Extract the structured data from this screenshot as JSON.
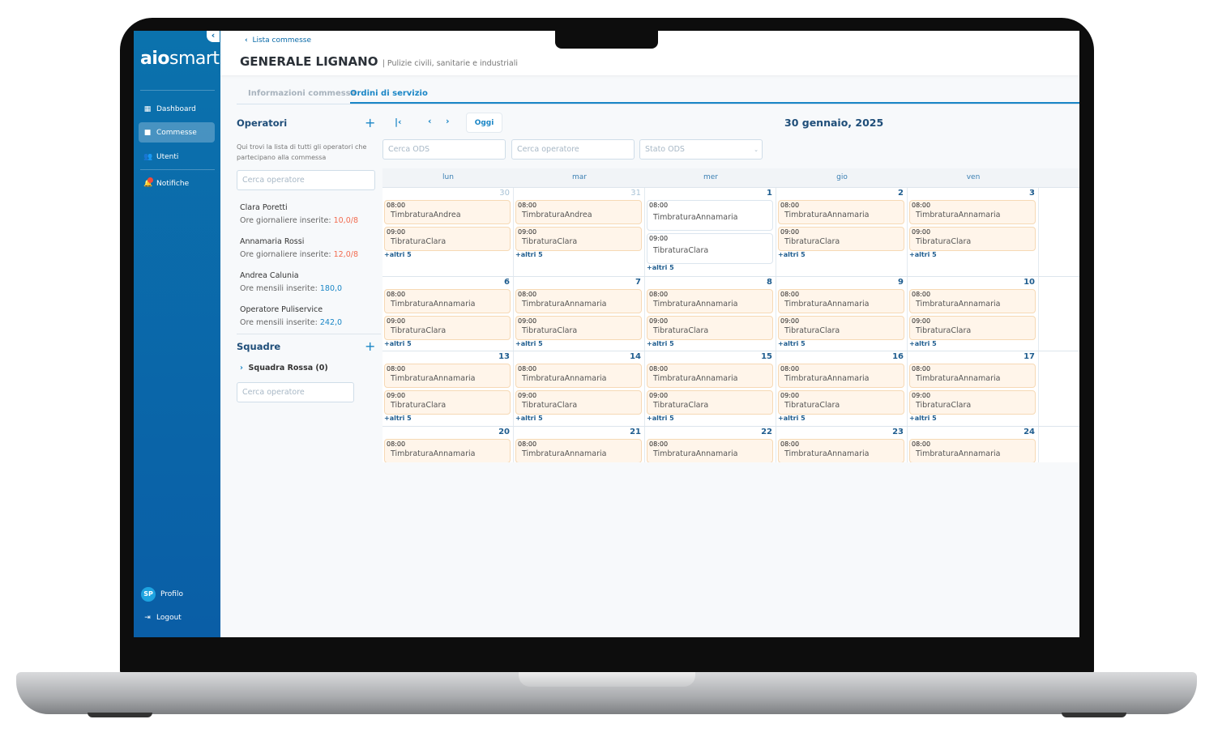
{
  "sidebar": {
    "logo": "aiosmart",
    "collapse_icon": "chevron-left-icon",
    "items": [
      {
        "label": "Dashboard",
        "icon": "dashboard-icon"
      },
      {
        "label": "Commesse",
        "icon": "folder-icon",
        "active": true
      },
      {
        "label": "Utenti",
        "icon": "users-icon"
      },
      {
        "label": "Notifiche",
        "icon": "bell-icon"
      }
    ],
    "profile": {
      "initials": "SP",
      "label": "Profilo"
    },
    "logout": "Logout"
  },
  "header": {
    "back_label": "Lista commesse",
    "title": "GENERALE LIGNANO",
    "subtitle": "| Pulizie civili, sanitarie e industriali"
  },
  "tabs": [
    {
      "label": "Informazioni commessa"
    },
    {
      "label": "Ordini di servizio",
      "active": true
    }
  ],
  "operators": {
    "title": "Operatori",
    "description": "Qui trovi la lista di tutti gli operatori  che partecipano alla commessa",
    "search_placeholder": "Cerca operatore",
    "items": [
      {
        "name": "Clara Poretti",
        "label": "Ore giornaliere inserite:",
        "value": "10,0/8",
        "status": "over"
      },
      {
        "name": "Annamaria Rossi",
        "label": "Ore giornaliere inserite:",
        "value": "12,0/8",
        "status": "over"
      },
      {
        "name": "Andrea Calunia",
        "label": "Ore mensili inserite:",
        "value": "180,0",
        "status": "ok"
      },
      {
        "name": "Operatore Puliservice",
        "label": "Ore mensili inserite:",
        "value": "242,0",
        "status": "ok"
      }
    ]
  },
  "teams": {
    "title": "Squadre",
    "items": [
      {
        "label": "Squadra Rossa (0)"
      }
    ],
    "search_placeholder": "Cerca operatore"
  },
  "calendar": {
    "today_label": "Oggi",
    "current_date": "30 gennaio, 2025",
    "filters": {
      "ods_placeholder": "Cerca ODS",
      "operator_placeholder": "Cerca operatore",
      "status_placeholder": "Stato ODS"
    },
    "weekdays": [
      "lun",
      "mar",
      "mer",
      "gio",
      "ven"
    ],
    "weeks": [
      {
        "days": [
          {
            "num": "30",
            "muted": true,
            "events": [
              {
                "time": "08:00",
                "label": "TimbraturaAndrea"
              },
              {
                "time": "09:00",
                "label": "TibraturaClara"
              }
            ],
            "more": "+altri 5"
          },
          {
            "num": "31",
            "muted": true,
            "events": [
              {
                "time": "08:00",
                "label": "TimbraturaAndrea"
              },
              {
                "time": "09:00",
                "label": "TibraturaClara"
              }
            ],
            "more": "+altri 5"
          },
          {
            "num": "1",
            "white": true,
            "events": [
              {
                "time": "08:00",
                "label": "TimbraturaAnnamaria"
              },
              {
                "time": "09:00",
                "label": "TibraturaClara"
              }
            ],
            "more": "+altri 5"
          },
          {
            "num": "2",
            "events": [
              {
                "time": "08:00",
                "label": "TimbraturaAnnamaria"
              },
              {
                "time": "09:00",
                "label": "TibraturaClara"
              }
            ],
            "more": "+altri 5"
          },
          {
            "num": "3",
            "events": [
              {
                "time": "08:00",
                "label": "TimbraturaAnnamaria"
              },
              {
                "time": "09:00",
                "label": "TibraturaClara"
              }
            ],
            "more": "+altri 5"
          }
        ]
      },
      {
        "days": [
          {
            "num": "6",
            "events": [
              {
                "time": "08:00",
                "label": "TimbraturaAnnamaria"
              },
              {
                "time": "09:00",
                "label": "TibraturaClara"
              }
            ],
            "more": "+altri 5"
          },
          {
            "num": "7",
            "events": [
              {
                "time": "08:00",
                "label": "TimbraturaAnnamaria"
              },
              {
                "time": "09:00",
                "label": "TibraturaClara"
              }
            ],
            "more": "+altri 5"
          },
          {
            "num": "8",
            "events": [
              {
                "time": "08:00",
                "label": "TimbraturaAnnamaria"
              },
              {
                "time": "09:00",
                "label": "TibraturaClara"
              }
            ],
            "more": "+altri 5"
          },
          {
            "num": "9",
            "events": [
              {
                "time": "08:00",
                "label": "TimbraturaAnnamaria"
              },
              {
                "time": "09:00",
                "label": "TibraturaClara"
              }
            ],
            "more": "+altri 5"
          },
          {
            "num": "10",
            "events": [
              {
                "time": "08:00",
                "label": "TimbraturaAnnamaria"
              },
              {
                "time": "09:00",
                "label": "TibraturaClara"
              }
            ],
            "more": "+altri 5"
          }
        ]
      },
      {
        "days": [
          {
            "num": "13",
            "events": [
              {
                "time": "08:00",
                "label": "TimbraturaAnnamaria"
              },
              {
                "time": "09:00",
                "label": "TibraturaClara"
              }
            ],
            "more": "+altri 5"
          },
          {
            "num": "14",
            "events": [
              {
                "time": "08:00",
                "label": "TimbraturaAnnamaria"
              },
              {
                "time": "09:00",
                "label": "TibraturaClara"
              }
            ],
            "more": "+altri 5"
          },
          {
            "num": "15",
            "events": [
              {
                "time": "08:00",
                "label": "TimbraturaAnnamaria"
              },
              {
                "time": "09:00",
                "label": "TibraturaClara"
              }
            ],
            "more": "+altri 5"
          },
          {
            "num": "16",
            "events": [
              {
                "time": "08:00",
                "label": "TimbraturaAnnamaria"
              },
              {
                "time": "09:00",
                "label": "TibraturaClara"
              }
            ],
            "more": "+altri 5"
          },
          {
            "num": "17",
            "events": [
              {
                "time": "08:00",
                "label": "TimbraturaAnnamaria"
              },
              {
                "time": "09:00",
                "label": "TibraturaClara"
              }
            ],
            "more": "+altri 5"
          }
        ]
      },
      {
        "days": [
          {
            "num": "20",
            "events": [
              {
                "time": "08:00",
                "label": "TimbraturaAnnamaria"
              }
            ]
          },
          {
            "num": "21",
            "events": [
              {
                "time": "08:00",
                "label": "TimbraturaAnnamaria"
              }
            ]
          },
          {
            "num": "22",
            "events": [
              {
                "time": "08:00",
                "label": "TimbraturaAnnamaria"
              }
            ]
          },
          {
            "num": "23",
            "events": [
              {
                "time": "08:00",
                "label": "TimbraturaAnnamaria"
              }
            ]
          },
          {
            "num": "24",
            "events": [
              {
                "time": "08:00",
                "label": "TimbraturaAnnamaria"
              }
            ]
          }
        ]
      }
    ]
  },
  "colors": {
    "sidebar": "#0a6aa8",
    "accent": "#1a86c6",
    "over_hours": "#f26b4f",
    "event_bg": "#fff5ea"
  }
}
